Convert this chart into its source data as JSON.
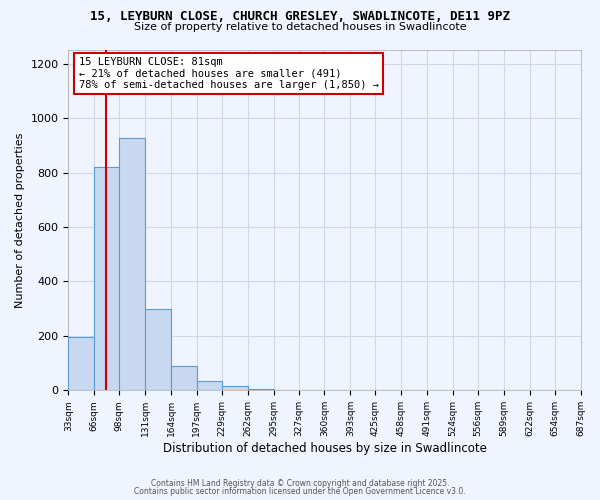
{
  "title_line1": "15, LEYBURN CLOSE, CHURCH GRESLEY, SWADLINCOTE, DE11 9PZ",
  "title_line2": "Size of property relative to detached houses in Swadlincote",
  "xlabel": "Distribution of detached houses by size in Swadlincote",
  "ylabel": "Number of detached properties",
  "annotation_line1": "15 LEYBURN CLOSE: 81sqm",
  "annotation_line2": "← 21% of detached houses are smaller (491)",
  "annotation_line3": "78% of semi-detached houses are larger (1,850) →",
  "bar_edges": [
    33,
    66,
    98,
    131,
    164,
    197,
    229,
    262,
    295,
    327,
    360,
    393,
    425,
    458,
    491,
    524,
    556,
    589,
    622,
    654,
    687
  ],
  "bar_heights": [
    197,
    822,
    928,
    298,
    88,
    35,
    15,
    5,
    0,
    0,
    0,
    0,
    0,
    0,
    0,
    0,
    0,
    0,
    0,
    0
  ],
  "bar_fill_color": "#c8d8f0",
  "bar_edge_color": "#5b9bd5",
  "vertical_line_x": 81,
  "vertical_line_color": "#cc0000",
  "annotation_box_edge_color": "#cc0000",
  "annotation_box_fill_color": "#ffffff",
  "ylim": [
    0,
    1250
  ],
  "yticks": [
    0,
    200,
    400,
    600,
    800,
    1000,
    1200
  ],
  "grid_color": "#d0d8e8",
  "background_color": "#f0f4ff",
  "footer_line1": "Contains HM Land Registry data © Crown copyright and database right 2025.",
  "footer_line2": "Contains public sector information licensed under the Open Government Licence v3.0.",
  "tick_labels": [
    "33sqm",
    "66sqm",
    "98sqm",
    "131sqm",
    "164sqm",
    "197sqm",
    "229sqm",
    "262sqm",
    "295sqm",
    "327sqm",
    "360sqm",
    "393sqm",
    "425sqm",
    "458sqm",
    "491sqm",
    "524sqm",
    "556sqm",
    "589sqm",
    "622sqm",
    "654sqm",
    "687sqm"
  ]
}
